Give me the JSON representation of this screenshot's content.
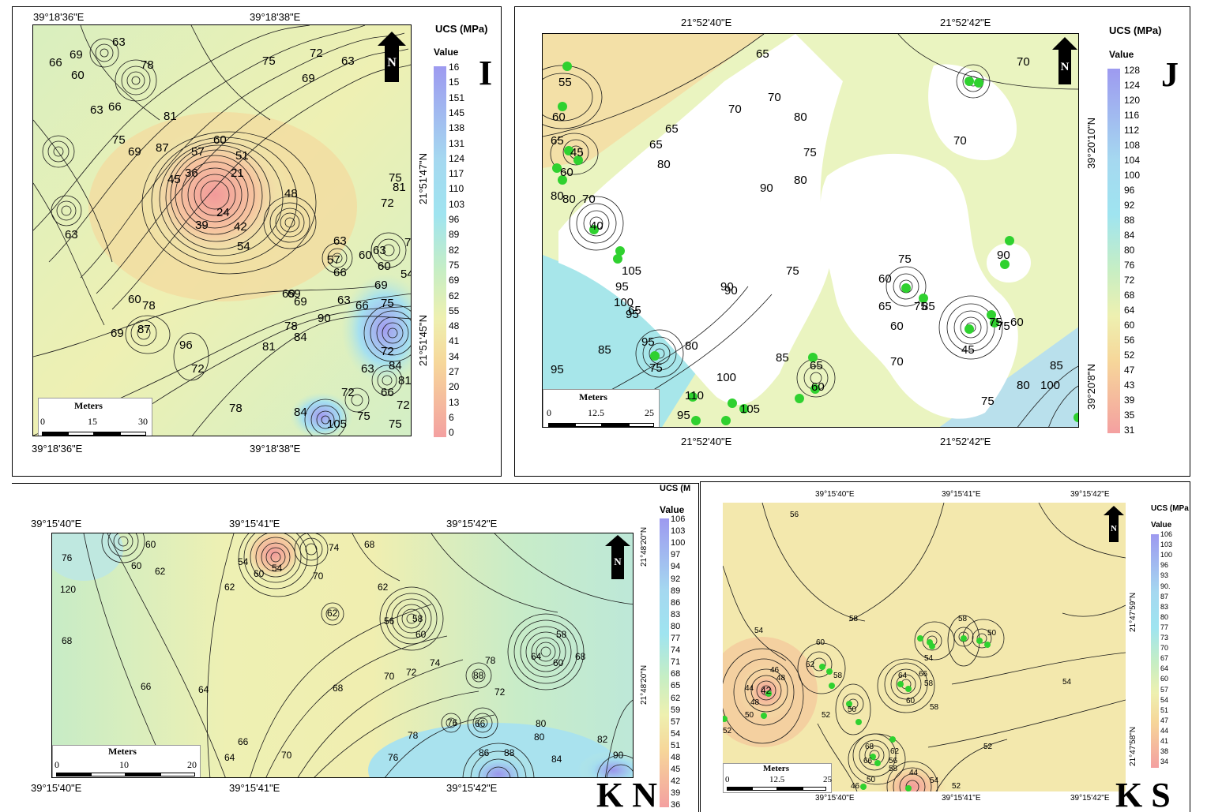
{
  "panels": [
    {
      "id": "I",
      "letter": "I",
      "coords": {
        "top_left": "39°18'36\"E",
        "top_mid": "39°18'38\"E",
        "bottom_left": "39°18'36\"E",
        "bottom_mid": "39°18'38\"E",
        "right_top": "21°51'47\"N",
        "right_bottom": "21°51'45\"N"
      },
      "legend": {
        "title": "UCS (MPa)",
        "subtitle": "Value",
        "ticks": [
          "16",
          "15",
          "151",
          "145",
          "138",
          "131",
          "124",
          "117",
          "110",
          "103",
          "96",
          "89",
          "82",
          "75",
          "69",
          "62",
          "55",
          "48",
          "41",
          "34",
          "27",
          "20",
          "13",
          "6",
          "0"
        ]
      },
      "scale": {
        "title": "Meters",
        "labels": [
          "0",
          "15",
          "30"
        ]
      },
      "north": "N",
      "contour_labels": [
        "69",
        "63",
        "66",
        "60",
        "78",
        "75",
        "72",
        "69",
        "63",
        "66",
        "63",
        "81",
        "87",
        "75",
        "69",
        "57",
        "60",
        "51",
        "45",
        "36",
        "21",
        "24",
        "39",
        "42",
        "54",
        "48",
        "63",
        "57",
        "60",
        "81",
        "75",
        "69",
        "72",
        "75",
        "63",
        "60",
        "54",
        "66",
        "69",
        "75",
        "66",
        "63",
        "90",
        "81",
        "78",
        "84",
        "87",
        "72",
        "96",
        "63",
        "66",
        "78",
        "84",
        "81",
        "69",
        "72",
        "75",
        "84",
        "105",
        "72",
        "75",
        "72",
        "78",
        "69",
        "60",
        "63",
        "69"
      ]
    },
    {
      "id": "J",
      "letter": "J",
      "coords": {
        "top_left": "21°52'40\"E",
        "top_right": "21°52'42\"E",
        "bottom_left": "21°52'40\"E",
        "bottom_right": "21°52'42\"E",
        "right_top": "39°20'10\"N",
        "right_bottom": "39°20'8\"N"
      },
      "legend": {
        "title": "UCS (MPa)",
        "subtitle": "Value",
        "ticks": [
          "128",
          "124",
          "120",
          "116",
          "112",
          "108",
          "104",
          "100",
          "96",
          "92",
          "88",
          "84",
          "80",
          "76",
          "72",
          "68",
          "64",
          "60",
          "56",
          "52",
          "47",
          "43",
          "39",
          "35",
          "31"
        ]
      },
      "scale": {
        "title": "Meters",
        "labels": [
          "0",
          "12.5",
          "25"
        ]
      },
      "north": "N",
      "contour_labels": [
        "55",
        "60",
        "65",
        "45",
        "60",
        "80",
        "70",
        "40",
        "65",
        "65",
        "70",
        "70",
        "80",
        "80",
        "75",
        "90",
        "80",
        "65",
        "80",
        "75",
        "60",
        "70",
        "95",
        "100",
        "105",
        "95",
        "90",
        "75",
        "90",
        "75",
        "65",
        "60",
        "85",
        "75",
        "45",
        "60",
        "75",
        "65",
        "95",
        "75",
        "80",
        "85",
        "90",
        "100",
        "95",
        "80",
        "75",
        "85",
        "100",
        "110",
        "95",
        "105",
        "70",
        "65",
        "60",
        "70",
        "85"
      ]
    },
    {
      "id": "KN",
      "letter": "K N",
      "coords": {
        "top_left": "39°15'40\"E",
        "top_mid": "39°15'41\"E",
        "top_right": "39°15'42\"E",
        "bottom_left": "39°15'40\"E",
        "bottom_mid": "39°15'41\"E",
        "bottom_right": "39°15'42\"E",
        "right_top": "21°48'20\"N",
        "right_bottom": "21°48'20\"N"
      },
      "legend": {
        "title": "UCS (M",
        "subtitle": "Value",
        "ticks": [
          "106",
          "103",
          "100",
          "97",
          "94",
          "92",
          "89",
          "86",
          "83",
          "80",
          "77",
          "74",
          "71",
          "68",
          "65",
          "62",
          "59",
          "57",
          "54",
          "51",
          "48",
          "45",
          "42",
          "39",
          "36"
        ]
      },
      "scale": {
        "title": "Meters",
        "labels": [
          "0",
          "10",
          "20"
        ]
      },
      "north": "N",
      "contour_labels": [
        "76",
        "120",
        "60",
        "62",
        "60",
        "54",
        "60",
        "54",
        "70",
        "74",
        "68",
        "62",
        "62",
        "56",
        "58",
        "60",
        "62",
        "58",
        "64",
        "60",
        "68",
        "68",
        "66",
        "64",
        "68",
        "70",
        "72",
        "74",
        "78",
        "80",
        "72",
        "66",
        "88",
        "76",
        "82",
        "90",
        "80",
        "84",
        "88",
        "86",
        "64",
        "66",
        "70",
        "76",
        "78"
      ]
    },
    {
      "id": "KS",
      "letter": "K S",
      "coords": {
        "top_left": "39°15'40\"E",
        "top_mid": "39°15'41\"E",
        "top_right": "39°15'42\"E",
        "bottom_left": "39°15'40\"E",
        "bottom_mid": "39°15'41\"E",
        "bottom_right": "39°15'42\"E",
        "right_top": "21°47'59\"N",
        "right_bottom": "21°47'58\"N"
      },
      "legend": {
        "title": "UCS (MPa",
        "subtitle": "Value",
        "ticks": [
          "106",
          "103",
          "100",
          "96",
          "93",
          "90.",
          "87",
          "83",
          "80",
          "77",
          "73",
          "70",
          "67",
          "64",
          "60",
          "57",
          "54",
          "51",
          "47",
          "44",
          "41",
          "38",
          "34"
        ]
      },
      "scale": {
        "title": "Meters",
        "labels": [
          "0",
          "12.5",
          "25"
        ]
      },
      "north": "N",
      "contour_labels": [
        "56",
        "58",
        "54",
        "60",
        "62",
        "58",
        "58",
        "54",
        "58",
        "50",
        "48",
        "46",
        "44",
        "42",
        "48",
        "50",
        "52",
        "52",
        "50",
        "64",
        "66",
        "60",
        "58",
        "68",
        "66",
        "58",
        "62",
        "56",
        "50",
        "46",
        "44",
        "54",
        "52",
        "52",
        "54"
      ]
    }
  ],
  "colors": {
    "low": "#f4a0a0",
    "mid_low": "#f6d79a",
    "mid": "#eef0b0",
    "mid_high": "#b9ecc8",
    "high": "#9fe4f0",
    "top": "#9d9af0",
    "point": "#2fd12f"
  }
}
